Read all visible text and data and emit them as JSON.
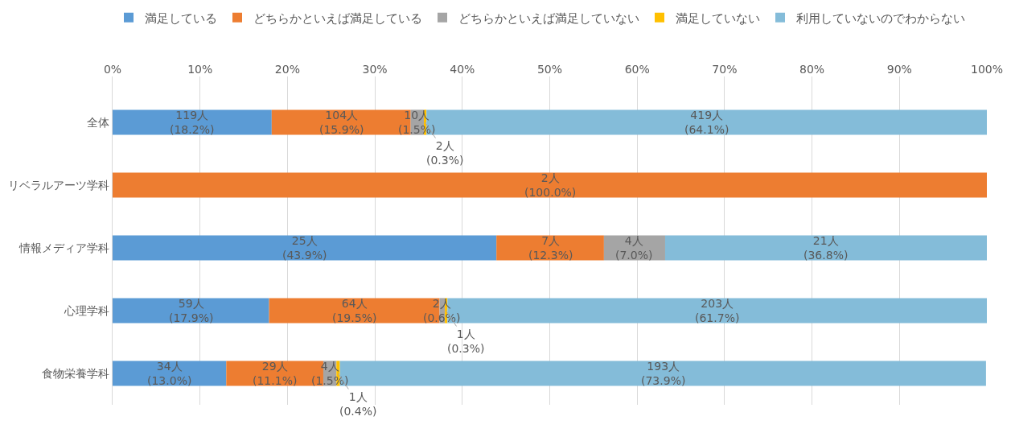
{
  "chart_data": {
    "type": "bar",
    "orientation": "horizontal",
    "stacked": true,
    "categories": [
      "全体",
      "リベラルアーツ学科",
      "情報メディア学科",
      "心理学科",
      "食物栄養学科"
    ],
    "series": [
      {
        "name": "満足している",
        "color": "#5b9bd5",
        "values": [
          18.2,
          null,
          43.9,
          17.9,
          13.0
        ],
        "value_labels": [
          "119人\n(18.2%)",
          null,
          "25人\n(43.9%)",
          "59人\n(17.9%)",
          "34人\n(13.0%)"
        ]
      },
      {
        "name": "どちらかといえば満足している",
        "color": "#ed7d31",
        "values": [
          15.9,
          100.0,
          12.3,
          19.5,
          11.1
        ],
        "value_labels": [
          "104人\n(15.9%)",
          "2人\n(100.0%)",
          "7人\n(12.3%)",
          "64人\n(19.5%)",
          "29人\n(11.1%)"
        ]
      },
      {
        "name": "どちらかといえば満足していない",
        "color": "#a5a5a5",
        "values": [
          1.5,
          null,
          7.0,
          0.6,
          1.5
        ],
        "value_labels": [
          "10人\n(1.5%)",
          null,
          "4人\n(7.0%)",
          "2人\n(0.6%)",
          "4人\n(1.5%)"
        ]
      },
      {
        "name": "満足していない",
        "color": "#ffc000",
        "values": [
          0.3,
          null,
          null,
          0.3,
          0.4
        ],
        "value_labels": [
          "2人\n(0.3%)",
          null,
          null,
          "1人\n(0.3%)",
          "1人\n(0.4%)"
        ]
      },
      {
        "name": "利用していないのでわからない",
        "color": "#84bcd9",
        "values": [
          64.1,
          null,
          36.8,
          61.7,
          73.9
        ],
        "value_labels": [
          "419人\n(64.1%)",
          null,
          "21人\n(36.8%)",
          "203人\n(61.7%)",
          "193人\n(73.9%)"
        ]
      }
    ],
    "xlim": [
      0,
      100
    ],
    "xticks": [
      {
        "value": 0,
        "label": "0%"
      },
      {
        "value": 10,
        "label": "10%"
      },
      {
        "value": 20,
        "label": "20%"
      },
      {
        "value": 30,
        "label": "30%"
      },
      {
        "value": 40,
        "label": "40%"
      },
      {
        "value": 50,
        "label": "50%"
      },
      {
        "value": 60,
        "label": "60%"
      },
      {
        "value": 70,
        "label": "70%"
      },
      {
        "value": 80,
        "label": "80%"
      },
      {
        "value": 90,
        "label": "90%"
      },
      {
        "value": 100,
        "label": "100%"
      }
    ],
    "grid": "x",
    "legend": "top"
  }
}
